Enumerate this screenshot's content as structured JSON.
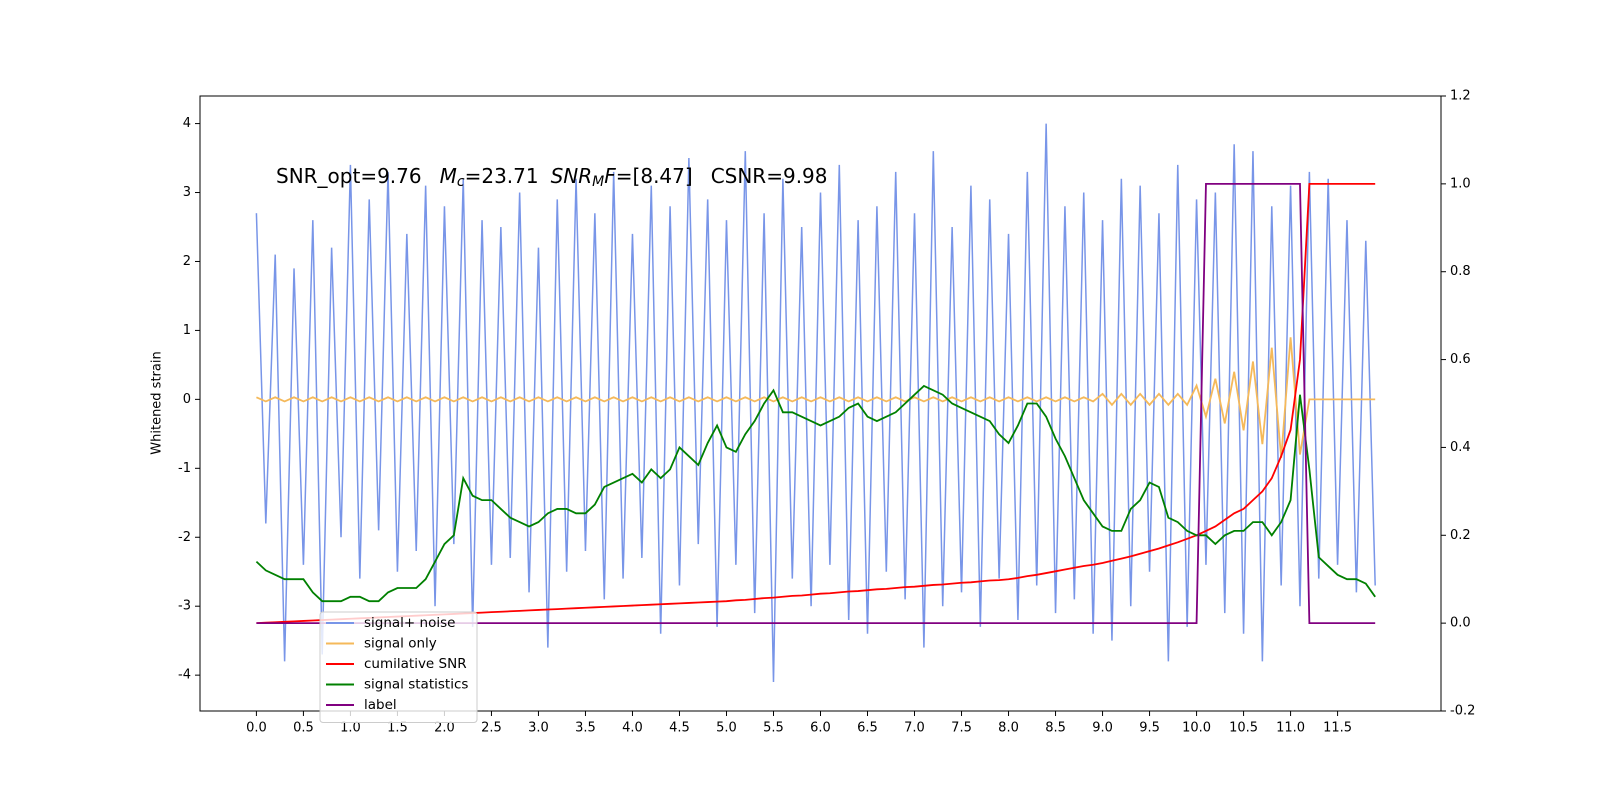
{
  "chart_data": {
    "type": "line",
    "annotation": [
      "SNR_opt=9.76",
      "M",
      "c",
      "=23.71",
      "SNR",
      "M",
      "F",
      "=[8.47]",
      "CSNR=9.98"
    ],
    "ylabel": "Whitened strain",
    "legend": "lower left",
    "x": [
      0.0,
      0.1,
      0.2,
      0.3,
      0.4,
      0.5,
      0.6,
      0.7,
      0.8,
      0.9,
      1.0,
      1.1,
      1.2,
      1.3,
      1.4,
      1.5,
      1.6,
      1.7,
      1.8,
      1.9,
      2.0,
      2.1,
      2.2,
      2.3,
      2.4,
      2.5,
      2.6,
      2.7,
      2.8,
      2.9,
      3.0,
      3.1,
      3.2,
      3.3,
      3.4,
      3.5,
      3.6,
      3.7,
      3.8,
      3.9,
      4.0,
      4.1,
      4.2,
      4.3,
      4.4,
      4.5,
      4.6,
      4.7,
      4.8,
      4.9,
      5.0,
      5.1,
      5.2,
      5.3,
      5.4,
      5.5,
      5.6,
      5.7,
      5.8,
      5.9,
      6.0,
      6.1,
      6.2,
      6.3,
      6.4,
      6.5,
      6.6,
      6.7,
      6.8,
      6.9,
      7.0,
      7.1,
      7.2,
      7.3,
      7.4,
      7.5,
      7.6,
      7.7,
      7.8,
      7.9,
      8.0,
      8.1,
      8.2,
      8.3,
      8.4,
      8.5,
      8.6,
      8.7,
      8.8,
      8.9,
      9.0,
      9.1,
      9.2,
      9.3,
      9.4,
      9.5,
      9.6,
      9.7,
      9.8,
      9.9,
      10.0,
      10.1,
      10.2,
      10.3,
      10.4,
      10.5,
      10.6,
      10.7,
      10.8,
      10.9,
      11.0,
      11.1,
      11.2,
      11.3,
      11.4,
      11.5,
      11.6,
      11.7,
      11.8,
      11.9
    ],
    "series": [
      {
        "name": "signal+ noise",
        "color": "#7895e8",
        "axis": "y",
        "values": [
          2.7,
          -1.8,
          2.1,
          -3.8,
          1.9,
          -2.4,
          2.6,
          -3.7,
          2.2,
          -2.0,
          3.4,
          -2.6,
          2.9,
          -1.9,
          3.3,
          -2.5,
          2.4,
          -2.2,
          3.1,
          -3.0,
          2.8,
          -2.1,
          3.2,
          -3.3,
          2.6,
          -2.4,
          2.5,
          -2.3,
          3.0,
          -2.8,
          2.2,
          -3.6,
          2.9,
          -2.5,
          3.2,
          -2.2,
          2.7,
          -2.9,
          3.3,
          -2.6,
          2.4,
          -2.3,
          3.1,
          -3.4,
          2.8,
          -2.7,
          3.5,
          -2.1,
          2.9,
          -3.3,
          2.6,
          -2.4,
          3.6,
          -3.1,
          2.7,
          -4.1,
          3.2,
          -2.6,
          2.5,
          -3.0,
          3.0,
          -2.4,
          3.4,
          -3.2,
          2.6,
          -3.4,
          2.8,
          -2.5,
          3.3,
          -2.9,
          2.7,
          -3.6,
          3.6,
          -3.0,
          2.5,
          -2.8,
          3.1,
          -3.3,
          2.9,
          -2.6,
          2.4,
          -3.2,
          3.3,
          -2.7,
          4.0,
          -3.1,
          2.8,
          -2.9,
          3.0,
          -3.4,
          2.6,
          -3.5,
          3.2,
          -3.0,
          3.1,
          -2.5,
          2.7,
          -3.8,
          3.4,
          -3.3,
          2.9,
          -2.4,
          3.0,
          -3.1,
          3.7,
          -3.4,
          3.6,
          -3.8,
          2.8,
          -2.7,
          3.1,
          -3.0,
          3.3,
          -2.6,
          3.2,
          -2.4,
          2.6,
          -2.8,
          2.3,
          -2.7
        ]
      },
      {
        "name": "signal only",
        "color": "#f5b95a",
        "axis": "y",
        "values": [
          0.03,
          -0.03,
          0.03,
          -0.03,
          0.03,
          -0.03,
          0.03,
          -0.03,
          0.03,
          -0.03,
          0.03,
          -0.03,
          0.03,
          -0.03,
          0.03,
          -0.03,
          0.03,
          -0.03,
          0.03,
          -0.03,
          0.03,
          -0.03,
          0.03,
          -0.03,
          0.03,
          -0.03,
          0.03,
          -0.03,
          0.03,
          -0.03,
          0.03,
          -0.03,
          0.03,
          -0.03,
          0.03,
          -0.03,
          0.03,
          -0.03,
          0.03,
          -0.03,
          0.03,
          -0.03,
          0.03,
          -0.03,
          0.03,
          -0.03,
          0.03,
          -0.03,
          0.03,
          -0.03,
          0.03,
          -0.03,
          0.03,
          -0.03,
          0.03,
          -0.03,
          0.03,
          -0.03,
          0.03,
          -0.03,
          0.03,
          -0.03,
          0.03,
          -0.03,
          0.03,
          -0.03,
          0.03,
          -0.03,
          0.03,
          -0.03,
          0.03,
          -0.03,
          0.03,
          -0.03,
          0.03,
          -0.03,
          0.03,
          -0.03,
          0.03,
          -0.03,
          0.03,
          -0.03,
          0.03,
          -0.03,
          0.03,
          -0.03,
          0.03,
          -0.03,
          0.03,
          -0.03,
          0.08,
          -0.08,
          0.08,
          -0.08,
          0.08,
          -0.08,
          0.08,
          -0.08,
          0.08,
          -0.08,
          0.2,
          -0.25,
          0.3,
          -0.35,
          0.4,
          -0.45,
          0.55,
          -0.65,
          0.75,
          -0.85,
          0.9,
          -0.8,
          0,
          0,
          0,
          0,
          0,
          0,
          0,
          0
        ]
      },
      {
        "name": "cumilative SNR",
        "color": "#ff0000",
        "axis": "y2",
        "values": [
          0,
          0.001,
          0.002,
          0.003,
          0.004,
          0.005,
          0.006,
          0.007,
          0.008,
          0.009,
          0.01,
          0.011,
          0.012,
          0.013,
          0.014,
          0.015,
          0.016,
          0.017,
          0.018,
          0.019,
          0.02,
          0.021,
          0.022,
          0.023,
          0.024,
          0.025,
          0.026,
          0.027,
          0.028,
          0.029,
          0.03,
          0.031,
          0.032,
          0.033,
          0.034,
          0.035,
          0.036,
          0.037,
          0.038,
          0.039,
          0.04,
          0.041,
          0.042,
          0.043,
          0.044,
          0.045,
          0.046,
          0.047,
          0.048,
          0.049,
          0.05,
          0.052,
          0.053,
          0.055,
          0.057,
          0.058,
          0.06,
          0.062,
          0.063,
          0.065,
          0.067,
          0.068,
          0.07,
          0.072,
          0.073,
          0.075,
          0.077,
          0.078,
          0.08,
          0.082,
          0.083,
          0.085,
          0.087,
          0.088,
          0.09,
          0.092,
          0.093,
          0.095,
          0.097,
          0.098,
          0.1,
          0.103,
          0.107,
          0.11,
          0.114,
          0.118,
          0.122,
          0.126,
          0.13,
          0.133,
          0.137,
          0.142,
          0.147,
          0.152,
          0.158,
          0.164,
          0.17,
          0.177,
          0.184,
          0.192,
          0.2,
          0.21,
          0.22,
          0.235,
          0.25,
          0.26,
          0.28,
          0.3,
          0.33,
          0.38,
          0.44,
          0.6,
          1,
          1,
          1,
          1,
          1,
          1,
          1,
          1
        ]
      },
      {
        "name": "signal statistics",
        "color": "#008000",
        "axis": "y2",
        "values": [
          0.14,
          0.12,
          0.11,
          0.1,
          0.1,
          0.1,
          0.07,
          0.05,
          0.05,
          0.05,
          0.06,
          0.06,
          0.05,
          0.05,
          0.07,
          0.08,
          0.08,
          0.08,
          0.1,
          0.14,
          0.18,
          0.2,
          0.33,
          0.29,
          0.28,
          0.28,
          0.26,
          0.24,
          0.23,
          0.22,
          0.23,
          0.25,
          0.26,
          0.26,
          0.25,
          0.25,
          0.27,
          0.31,
          0.32,
          0.33,
          0.34,
          0.32,
          0.35,
          0.33,
          0.35,
          0.4,
          0.38,
          0.36,
          0.41,
          0.45,
          0.4,
          0.39,
          0.43,
          0.46,
          0.5,
          0.53,
          0.48,
          0.48,
          0.47,
          0.46,
          0.45,
          0.46,
          0.47,
          0.49,
          0.5,
          0.47,
          0.46,
          0.47,
          0.48,
          0.5,
          0.52,
          0.54,
          0.53,
          0.52,
          0.5,
          0.49,
          0.48,
          0.47,
          0.46,
          0.43,
          0.41,
          0.45,
          0.5,
          0.5,
          0.47,
          0.42,
          0.38,
          0.33,
          0.28,
          0.25,
          0.22,
          0.21,
          0.21,
          0.26,
          0.28,
          0.32,
          0.31,
          0.24,
          0.23,
          0.21,
          0.2,
          0.2,
          0.18,
          0.2,
          0.21,
          0.21,
          0.23,
          0.23,
          0.2,
          0.23,
          0.28,
          0.52,
          0.35,
          0.15,
          0.13,
          0.11,
          0.1,
          0.1,
          0.09,
          0.06
        ]
      },
      {
        "name": "label",
        "color": "#800080",
        "axis": "y2",
        "values": [
          0,
          0,
          0,
          0,
          0,
          0,
          0,
          0,
          0,
          0,
          0,
          0,
          0,
          0,
          0,
          0,
          0,
          0,
          0,
          0,
          0,
          0,
          0,
          0,
          0,
          0,
          0,
          0,
          0,
          0,
          0,
          0,
          0,
          0,
          0,
          0,
          0,
          0,
          0,
          0,
          0,
          0,
          0,
          0,
          0,
          0,
          0,
          0,
          0,
          0,
          0,
          0,
          0,
          0,
          0,
          0,
          0,
          0,
          0,
          0,
          0,
          0,
          0,
          0,
          0,
          0,
          0,
          0,
          0,
          0,
          0,
          0,
          0,
          0,
          0,
          0,
          0,
          0,
          0,
          0,
          0,
          0,
          0,
          0,
          0,
          0,
          0,
          0,
          0,
          0,
          0,
          0,
          0,
          0,
          0,
          0,
          0,
          0,
          0,
          0,
          0,
          1,
          1,
          1,
          1,
          1,
          1,
          1,
          1,
          1,
          1,
          1,
          0,
          0,
          0,
          0,
          0,
          0,
          0,
          0
        ]
      }
    ],
    "xlim": [
      -0.6,
      12.6
    ],
    "xticks": [
      {
        "value": 0,
        "label": "0.0"
      },
      0.5,
      {
        "value": 1,
        "label": "1.0"
      },
      1.5,
      {
        "value": 2,
        "label": "2.0"
      },
      2.5,
      {
        "value": 3,
        "label": "3.0"
      },
      3.5,
      {
        "value": 4,
        "label": "4.0"
      },
      4.5,
      {
        "value": 5,
        "label": "5.0"
      },
      5.5,
      {
        "value": 6,
        "label": "6.0"
      },
      6.5,
      {
        "value": 7,
        "label": "7.0"
      },
      7.5,
      {
        "value": 8,
        "label": "8.0"
      },
      8.5,
      {
        "value": 9,
        "label": "9.0"
      },
      9.5,
      {
        "value": 10,
        "label": "10.0"
      },
      10.5,
      {
        "value": 11,
        "label": "11.0"
      },
      11.5
    ],
    "ylim": [
      -4.52,
      4.4
    ],
    "yticks": [
      -4,
      -3,
      -2,
      -1,
      0,
      1,
      2,
      3,
      4
    ],
    "y2lim": [
      -0.2,
      1.2
    ],
    "y2ticks": [
      -0.2,
      {
        "value": 0,
        "label": "0.0"
      },
      0.2,
      0.4,
      0.6,
      0.8,
      {
        "value": 1,
        "label": "1.0"
      },
      1.2
    ]
  }
}
